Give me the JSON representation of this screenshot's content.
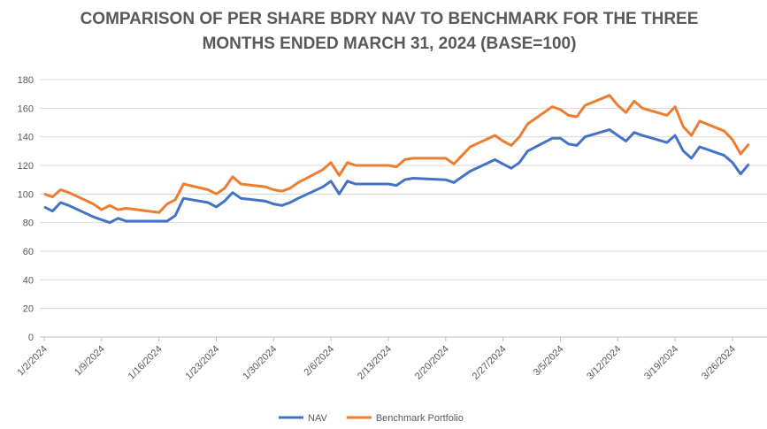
{
  "chart_data": {
    "type": "line",
    "title": "COMPARISON OF PER SHARE BDRY NAV TO BENCHMARK FOR THE THREE MONTHS ENDED MARCH 31, 2024 (BASE=100)",
    "x": [
      "1/2/2024",
      "1/3/2024",
      "1/4/2024",
      "1/5/2024",
      "1/8/2024",
      "1/9/2024",
      "1/10/2024",
      "1/11/2024",
      "1/12/2024",
      "1/16/2024",
      "1/17/2024",
      "1/18/2024",
      "1/19/2024",
      "1/22/2024",
      "1/23/2024",
      "1/24/2024",
      "1/25/2024",
      "1/26/2024",
      "1/29/2024",
      "1/30/2024",
      "1/31/2024",
      "2/1/2024",
      "2/2/2024",
      "2/5/2024",
      "2/6/2024",
      "2/7/2024",
      "2/8/2024",
      "2/9/2024",
      "2/12/2024",
      "2/13/2024",
      "2/14/2024",
      "2/15/2024",
      "2/16/2024",
      "2/20/2024",
      "2/21/2024",
      "2/22/2024",
      "2/23/2024",
      "2/26/2024",
      "2/27/2024",
      "2/28/2024",
      "2/29/2024",
      "3/1/2024",
      "3/4/2024",
      "3/5/2024",
      "3/6/2024",
      "3/7/2024",
      "3/8/2024",
      "3/11/2024",
      "3/12/2024",
      "3/13/2024",
      "3/14/2024",
      "3/15/2024",
      "3/18/2024",
      "3/19/2024",
      "3/20/2024",
      "3/21/2024",
      "3/22/2024",
      "3/25/2024",
      "3/26/2024",
      "3/27/2024",
      "3/28/2024"
    ],
    "series": [
      {
        "name": "NAV",
        "color": "#4472c4",
        "values": [
          91,
          88,
          94,
          92,
          84,
          82,
          80,
          83,
          81,
          81,
          81,
          85,
          97,
          94,
          91,
          95,
          101,
          97,
          95,
          93,
          92,
          94,
          97,
          105,
          109,
          100,
          109,
          107,
          107,
          107,
          106,
          110,
          111,
          110,
          108,
          112,
          116,
          124,
          121,
          118,
          122,
          130,
          139,
          139,
          135,
          134,
          140,
          145,
          141,
          137,
          143,
          141,
          136,
          141,
          130,
          125,
          133,
          127,
          122,
          114,
          121
        ]
      },
      {
        "name": "Benchmark Portfolio",
        "color": "#ed7d31",
        "values": [
          100,
          98,
          103,
          101,
          93,
          89,
          92,
          89,
          90,
          87,
          93,
          96,
          107,
          103,
          100,
          104,
          112,
          107,
          105,
          103,
          102,
          104,
          108,
          117,
          122,
          113,
          122,
          120,
          120,
          120,
          119,
          124,
          125,
          125,
          121,
          127,
          133,
          141,
          137,
          134,
          140,
          149,
          161,
          159,
          155,
          154,
          162,
          169,
          162,
          157,
          165,
          160,
          155,
          161,
          147,
          141,
          151,
          144,
          138,
          128,
          135
        ]
      }
    ],
    "xlim": [
      "1/2/2024",
      "3/30/2024"
    ],
    "xticks": [
      "1/2/2024",
      "1/9/2024",
      "1/16/2024",
      "1/23/2024",
      "1/30/2024",
      "2/6/2024",
      "2/13/2024",
      "2/20/2024",
      "2/27/2024",
      "3/5/2024",
      "3/12/2024",
      "3/19/2024",
      "3/26/2024"
    ],
    "ylim": [
      0,
      180
    ],
    "yticks": [
      0,
      20,
      40,
      60,
      80,
      100,
      120,
      140,
      160,
      180
    ],
    "grid": true,
    "legend": "bottom"
  }
}
